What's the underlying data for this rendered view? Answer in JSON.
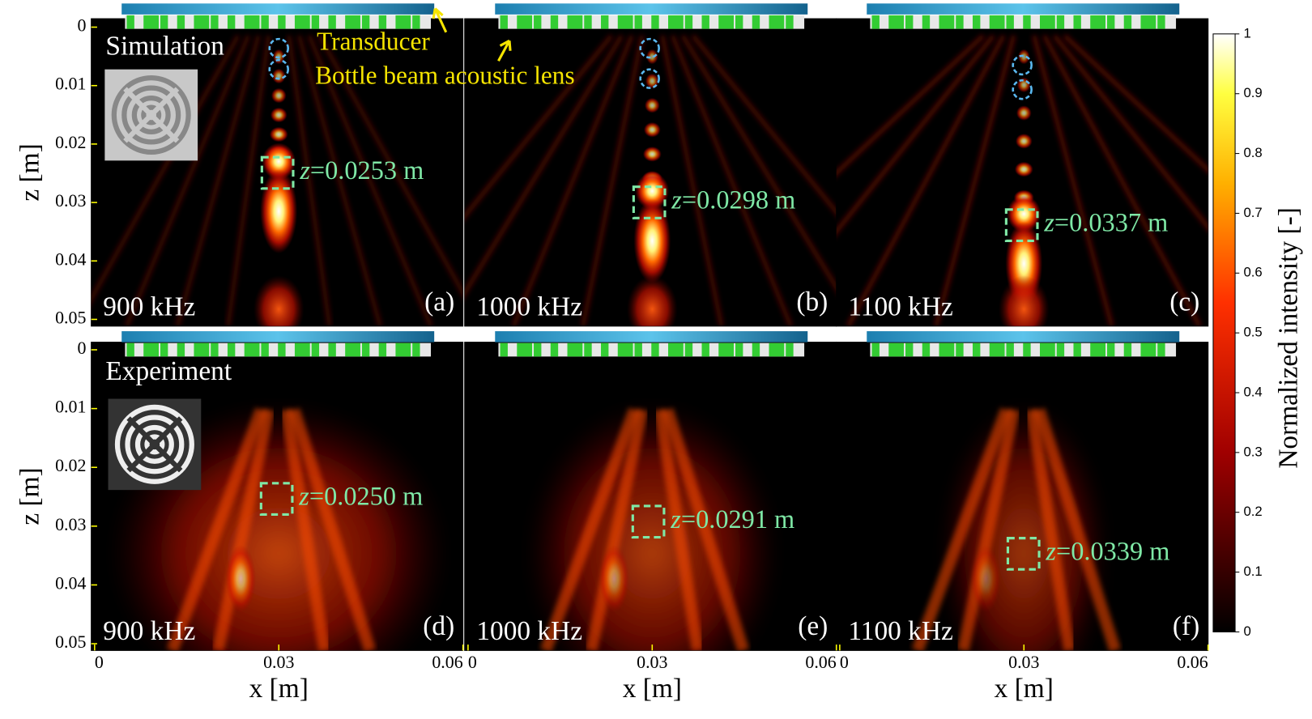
{
  "rows": [
    {
      "label": "Simulation"
    },
    {
      "label": "Experiment"
    }
  ],
  "panels": [
    {
      "tag": "(a)",
      "frequency": "900 kHz",
      "focus": "=0.0253 m"
    },
    {
      "tag": "(b)",
      "frequency": "1000 kHz",
      "focus": "=0.0298 m"
    },
    {
      "tag": "(c)",
      "frequency": "1100 kHz",
      "focus": "=0.0337 m"
    },
    {
      "tag": "(d)",
      "frequency": "900 kHz",
      "focus": "=0.0250 m"
    },
    {
      "tag": "(e)",
      "frequency": "1000 kHz",
      "focus": "=0.0291 m"
    },
    {
      "tag": "(f)",
      "frequency": "1100 kHz",
      "focus": "=0.0339 m"
    }
  ],
  "focus_variable": "z",
  "annotations": {
    "transducer": "Transducer",
    "lens": "Bottle beam acoustic lens"
  },
  "axes": {
    "xlabel": "x [m]",
    "ylabel": "z [m]",
    "xlim": [
      0,
      0.06
    ],
    "xticks": [
      0,
      0.03,
      0.06
    ],
    "zlim": [
      0,
      0.05
    ],
    "zticks": [
      0,
      0.01,
      0.02,
      0.03,
      0.04,
      0.05
    ]
  },
  "colorbar": {
    "label": "Normalized intensity [-]",
    "lim": [
      0,
      1
    ],
    "ticks": [
      0,
      0.1,
      0.2,
      0.3,
      0.4,
      0.5,
      0.6,
      0.7,
      0.8,
      0.9,
      1
    ]
  }
}
